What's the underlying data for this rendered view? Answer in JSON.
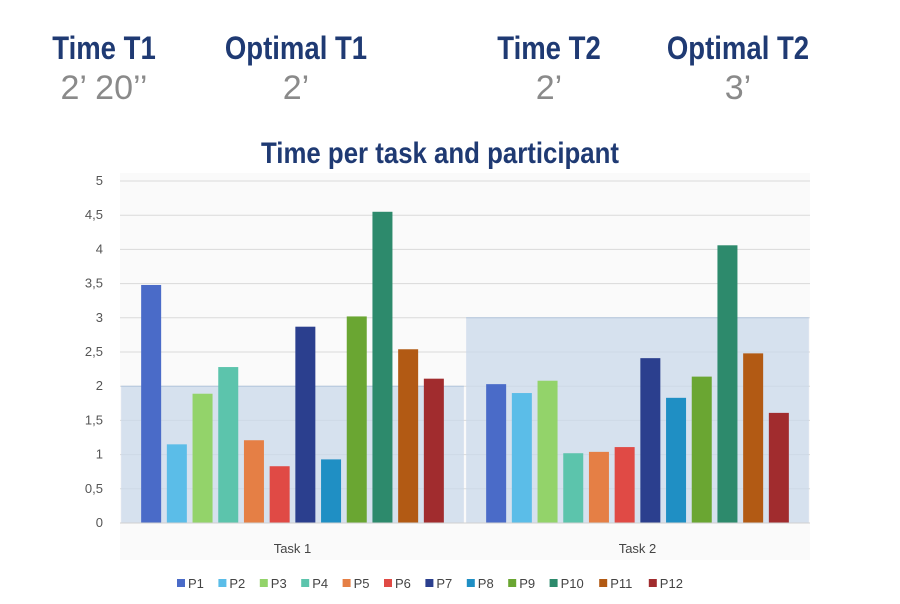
{
  "stats": [
    {
      "label": "Time T1",
      "value": "2’ 20’’"
    },
    {
      "label": "Optimal T1",
      "value": "2’"
    },
    {
      "label": "Time T2",
      "value": "2’"
    },
    {
      "label": "Optimal T2",
      "value": "3’"
    }
  ],
  "chart_data": {
    "type": "bar",
    "title": "Time per task and participant",
    "xlabel": "",
    "ylabel": "",
    "ylim": [
      0,
      5
    ],
    "yticks": [
      "0",
      "0,5",
      "1",
      "1,5",
      "2",
      "2,5",
      "3",
      "3,5",
      "4",
      "4,5",
      "5"
    ],
    "grid": true,
    "legend_position": "bottom",
    "categories": [
      "Task 1",
      "Task 2"
    ],
    "optimal_bands": [
      2,
      3
    ],
    "series": [
      {
        "name": "P1",
        "color": "#4a6bc8",
        "values": [
          3.48,
          2.03
        ]
      },
      {
        "name": "P2",
        "color": "#5bbde8",
        "values": [
          1.15,
          1.9
        ]
      },
      {
        "name": "P3",
        "color": "#93d36a",
        "values": [
          1.89,
          2.08
        ]
      },
      {
        "name": "P4",
        "color": "#5cc4ac",
        "values": [
          2.28,
          1.02
        ]
      },
      {
        "name": "P5",
        "color": "#e57f45",
        "values": [
          1.21,
          1.04
        ]
      },
      {
        "name": "P6",
        "color": "#e04a45",
        "values": [
          0.83,
          1.11
        ]
      },
      {
        "name": "P7",
        "color": "#2b3f8e",
        "values": [
          2.87,
          2.41
        ]
      },
      {
        "name": "P8",
        "color": "#1f8fc4",
        "values": [
          0.93,
          1.83
        ]
      },
      {
        "name": "P9",
        "color": "#6aa632",
        "values": [
          3.02,
          2.14
        ]
      },
      {
        "name": "P10",
        "color": "#2d8a6c",
        "values": [
          4.55,
          4.06
        ]
      },
      {
        "name": "P11",
        "color": "#b25a14",
        "values": [
          2.54,
          2.48
        ]
      },
      {
        "name": "P12",
        "color": "#a12c2e",
        "values": [
          2.11,
          1.61
        ]
      }
    ]
  }
}
